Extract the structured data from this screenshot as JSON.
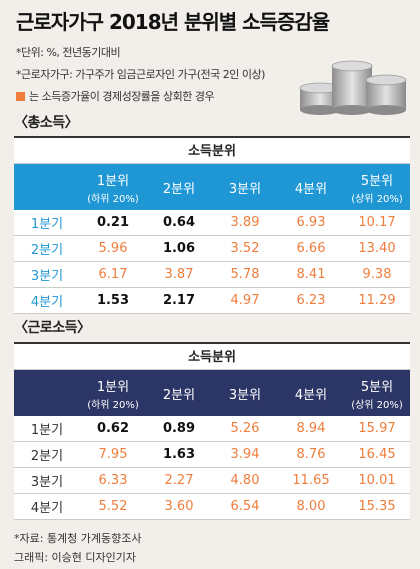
{
  "title": "근로자가구 2018년 분위별 소득증감율",
  "notes": {
    "unit": "*단위: %, 전년동기대비",
    "definition": "*근로자가구: 가구주가 임금근로자인 가구(전국 2인 이상)",
    "legend": "는 소득증가율이 경제성장률을 상회한 경우"
  },
  "colors": {
    "highlight": "#ef7d3c",
    "total_header": "#1f97d4",
    "labor_header": "#2b3566"
  },
  "chart_data": [
    {
      "type": "table",
      "title": "〈총소득〉",
      "group_label": "소득분위",
      "columns": [
        {
          "label": "1분위",
          "sub": "(하위 20%)"
        },
        {
          "label": "2분위",
          "sub": ""
        },
        {
          "label": "3분위",
          "sub": ""
        },
        {
          "label": "4분위",
          "sub": ""
        },
        {
          "label": "5분위",
          "sub": "(상위 20%)"
        }
      ],
      "rows": [
        {
          "label": "1분기",
          "values": [
            "0.21",
            "0.64",
            "3.89",
            "6.93",
            "10.17"
          ],
          "highlight": [
            false,
            false,
            true,
            true,
            true
          ]
        },
        {
          "label": "2분기",
          "values": [
            "5.96",
            "1.06",
            "3.52",
            "6.66",
            "13.40"
          ],
          "highlight": [
            true,
            false,
            true,
            true,
            true
          ]
        },
        {
          "label": "3분기",
          "values": [
            "6.17",
            "3.87",
            "5.78",
            "8.41",
            "9.38"
          ],
          "highlight": [
            true,
            true,
            true,
            true,
            true
          ]
        },
        {
          "label": "4분기",
          "values": [
            "1.53",
            "2.17",
            "4.97",
            "6.23",
            "11.29"
          ],
          "highlight": [
            false,
            false,
            true,
            true,
            true
          ]
        }
      ]
    },
    {
      "type": "table",
      "title": "〈근로소득〉",
      "group_label": "소득분위",
      "columns": [
        {
          "label": "1분위",
          "sub": "(하위 20%)"
        },
        {
          "label": "2분위",
          "sub": ""
        },
        {
          "label": "3분위",
          "sub": ""
        },
        {
          "label": "4분위",
          "sub": ""
        },
        {
          "label": "5분위",
          "sub": "(상위 20%)"
        }
      ],
      "rows": [
        {
          "label": "1분기",
          "values": [
            "0.62",
            "0.89",
            "5.26",
            "8.94",
            "15.97"
          ],
          "highlight": [
            false,
            false,
            true,
            true,
            true
          ]
        },
        {
          "label": "2분기",
          "values": [
            "7.95",
            "1.63",
            "3.94",
            "8.76",
            "16.45"
          ],
          "highlight": [
            true,
            false,
            true,
            true,
            true
          ]
        },
        {
          "label": "3분기",
          "values": [
            "6.33",
            "2.27",
            "4.80",
            "11.65",
            "10.01"
          ],
          "highlight": [
            true,
            true,
            true,
            true,
            true
          ]
        },
        {
          "label": "4분기",
          "values": [
            "5.52",
            "3.60",
            "6.54",
            "8.00",
            "15.35"
          ],
          "highlight": [
            true,
            true,
            true,
            true,
            true
          ]
        }
      ]
    }
  ],
  "footer": {
    "source": "*자료: 통계청 가계동향조사",
    "credit": "그래픽: 이승현 디자인기자"
  }
}
